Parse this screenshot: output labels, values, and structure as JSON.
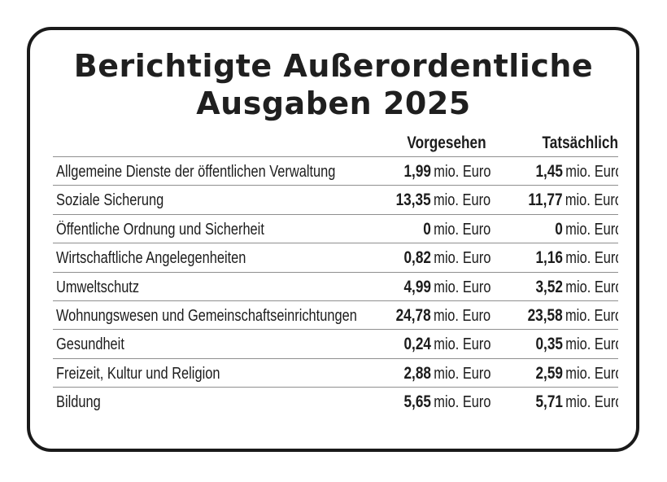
{
  "title": {
    "line1": "Berichtigte Außerordentliche",
    "line2": "Ausgaben 2025"
  },
  "columns": {
    "label": "",
    "planned": "Vorgesehen",
    "actual": "Tatsächlich"
  },
  "unit": "mio. Euro",
  "rows": [
    {
      "label": "Allgemeine Dienste der öffentlichen Verwaltung",
      "planned": "1,99",
      "actual": "1,45"
    },
    {
      "label": "Soziale Sicherung",
      "planned": "13,35",
      "actual": "11,77"
    },
    {
      "label": "Öffentliche Ordnung und Sicherheit",
      "planned": "0",
      "actual": "0"
    },
    {
      "label": "Wirtschaftliche Angelegenheiten",
      "planned": "0,82",
      "actual": "1,16"
    },
    {
      "label": "Umweltschutz",
      "planned": "4,99",
      "actual": "3,52"
    },
    {
      "label": "Wohnungswesen und Gemeinschaftseinrichtungen",
      "planned": "24,78",
      "actual": "23,58"
    },
    {
      "label": "Gesundheit",
      "planned": "0,24",
      "actual": "0,35"
    },
    {
      "label": "Freizeit, Kultur und Religion",
      "planned": "2,88",
      "actual": "2,59"
    },
    {
      "label": "Bildung",
      "planned": "5,65",
      "actual": "5,71"
    }
  ],
  "colors": {
    "text": "#1c1c1c",
    "border": "#1a1a1a",
    "separator": "#8f8f8f",
    "background": "#ffffff"
  }
}
